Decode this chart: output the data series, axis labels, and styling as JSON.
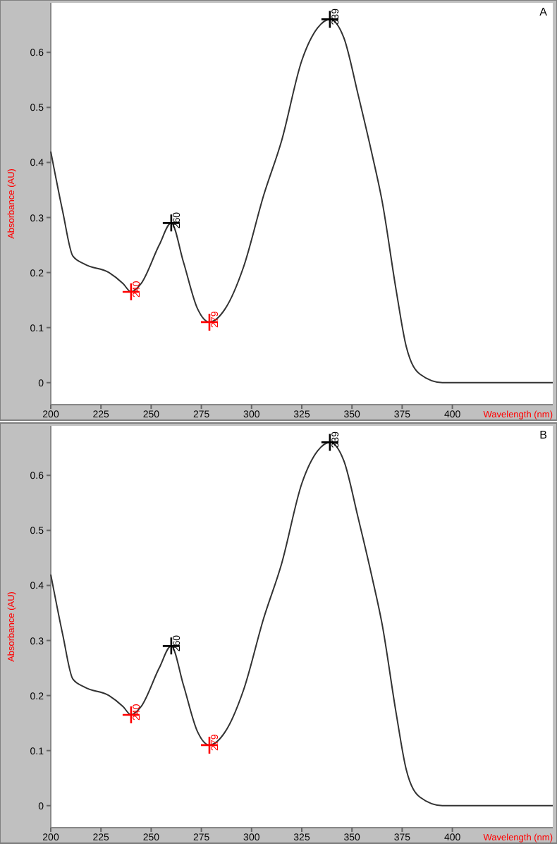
{
  "chart_data": [
    {
      "type": "line",
      "title": "A",
      "xlabel": "Wavelength (nm)",
      "ylabel": "Absorbance (AU)",
      "xlim": [
        200,
        450
      ],
      "ylim": [
        -0.04,
        0.69
      ],
      "xticks": [
        200,
        225,
        250,
        275,
        300,
        325,
        350,
        375,
        400
      ],
      "yticks": [
        0,
        0.1,
        0.2,
        0.3,
        0.4,
        0.5,
        0.6
      ],
      "grid": false,
      "series": [
        {
          "color": "#333333",
          "marker": "none",
          "x": [
            200,
            206,
            211,
            217,
            229,
            236,
            240,
            245,
            254,
            260,
            266,
            273,
            279,
            287,
            296,
            306,
            315,
            325,
            333,
            339,
            346,
            353,
            360,
            365,
            372,
            377,
            384,
            395,
            420,
            450
          ],
          "values": [
            0.42,
            0.31,
            0.23,
            0.215,
            0.2,
            0.18,
            0.165,
            0.18,
            0.25,
            0.29,
            0.22,
            0.135,
            0.11,
            0.135,
            0.21,
            0.34,
            0.44,
            0.585,
            0.645,
            0.66,
            0.626,
            0.524,
            0.415,
            0.33,
            0.168,
            0.066,
            0.015,
            0,
            0,
            0
          ]
        },
        {
          "type": "scatter",
          "color": "#ff0000",
          "marker": "cross",
          "x": [
            240,
            279
          ],
          "values": [
            0.165,
            0.11
          ]
        },
        {
          "type": "scatter",
          "color": "#000000",
          "marker": "cross",
          "x": [
            260,
            339
          ],
          "values": [
            0.29,
            0.66
          ]
        }
      ],
      "annotations": [
        {
          "text": "240",
          "x": 240,
          "y": 0.165
        },
        {
          "text": "260",
          "x": 260,
          "y": 0.29
        },
        {
          "text": "279",
          "x": 279,
          "y": 0.11
        },
        {
          "text": "339",
          "x": 339,
          "y": 0.66
        }
      ]
    },
    {
      "type": "line",
      "title": "B",
      "xlabel": "Wavelength (nm)",
      "ylabel": "Absorbance (AU)",
      "xlim": [
        200,
        450
      ],
      "ylim": [
        -0.04,
        0.69
      ],
      "xticks": [
        200,
        225,
        250,
        275,
        300,
        325,
        350,
        375,
        400
      ],
      "yticks": [
        0,
        0.1,
        0.2,
        0.3,
        0.4,
        0.5,
        0.6
      ],
      "grid": false,
      "series": [
        {
          "color": "#333333",
          "marker": "none",
          "x": [
            200,
            206,
            211,
            217,
            229,
            236,
            240,
            245,
            254,
            260,
            266,
            273,
            279,
            287,
            296,
            306,
            315,
            325,
            333,
            339,
            346,
            353,
            360,
            365,
            372,
            377,
            384,
            395,
            420,
            450
          ],
          "values": [
            0.42,
            0.31,
            0.23,
            0.215,
            0.2,
            0.18,
            0.165,
            0.18,
            0.25,
            0.29,
            0.22,
            0.135,
            0.11,
            0.135,
            0.21,
            0.34,
            0.44,
            0.585,
            0.645,
            0.66,
            0.626,
            0.524,
            0.415,
            0.33,
            0.168,
            0.066,
            0.015,
            0,
            0,
            0
          ]
        },
        {
          "type": "scatter",
          "color": "#ff0000",
          "marker": "cross",
          "x": [
            240,
            279
          ],
          "values": [
            0.165,
            0.11
          ]
        },
        {
          "type": "scatter",
          "color": "#000000",
          "marker": "cross",
          "x": [
            260,
            339
          ],
          "values": [
            0.29,
            0.66
          ]
        }
      ],
      "annotations": [
        {
          "text": "240",
          "x": 240,
          "y": 0.165
        },
        {
          "text": "260",
          "x": 260,
          "y": 0.29
        },
        {
          "text": "279",
          "x": 279,
          "y": 0.11
        },
        {
          "text": "339",
          "x": 339,
          "y": 0.66
        }
      ]
    }
  ]
}
